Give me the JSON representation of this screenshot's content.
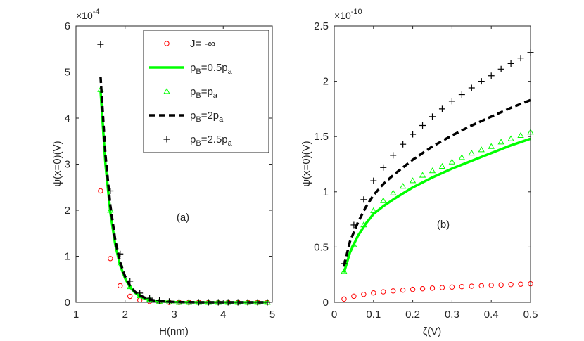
{
  "colors": {
    "axis": "#262626",
    "red": "#ff0000",
    "green": "#00ff00",
    "black": "#000000",
    "plus": "#000000"
  },
  "chart_data": [
    {
      "type": "line",
      "panel_label": "(a)",
      "xlabel": "H(nm)",
      "ylabel": "ψ(x=0)(V)",
      "exponent": {
        "base": "×10",
        "power": "-4"
      },
      "xlim": [
        1,
        5
      ],
      "ylim": [
        0,
        6
      ],
      "xticks": [
        "1",
        "2",
        "3",
        "4",
        "5"
      ],
      "yticks": [
        "0",
        "1",
        "2",
        "3",
        "4",
        "5",
        "6"
      ],
      "legend": {
        "placement": "top-right",
        "entries": [
          {
            "pre": "J= -∞",
            "sub": "",
            "post": "",
            "marker": "circle",
            "color": "#ff0000"
          },
          {
            "pre": "p",
            "sub": "B",
            "post": "=0.5p",
            "sub2": "a",
            "marker": "line",
            "color": "#00ff00"
          },
          {
            "pre": "p",
            "sub": "B",
            "post": "=p",
            "sub2": "a",
            "marker": "triangle",
            "color": "#00ff00"
          },
          {
            "pre": "p",
            "sub": "B",
            "post": "=2p",
            "sub2": "a",
            "marker": "dash",
            "color": "#000000"
          },
          {
            "pre": "p",
            "sub": "B",
            "post": "=2.5p",
            "sub2": "a",
            "marker": "plus",
            "color": "#000000"
          }
        ]
      },
      "series": [
        {
          "name": "J= -∞",
          "style": "circle",
          "color": "#ff0000",
          "x": [
            1.5,
            1.7,
            1.9,
            2.1,
            2.3,
            2.5,
            2.7,
            2.9,
            3.1,
            3.3,
            3.5,
            3.7,
            3.9,
            4.1,
            4.3,
            4.5,
            4.7,
            4.9
          ],
          "y": [
            2.42,
            0.95,
            0.36,
            0.13,
            0.05,
            0.02,
            0.01,
            0.0,
            0.0,
            0.0,
            0.0,
            0.0,
            0.0,
            0.0,
            0.0,
            0.0,
            0.0,
            0.0
          ]
        },
        {
          "name": "pB=0.5pa",
          "style": "line",
          "color": "#00ff00",
          "x": [
            1.5,
            1.6,
            1.7,
            1.8,
            1.9,
            2.0,
            2.1,
            2.2,
            2.3,
            2.4,
            2.5,
            2.6,
            2.8,
            3.0,
            3.5,
            4.0,
            4.5,
            4.9
          ],
          "y": [
            4.6,
            3.0,
            1.95,
            1.25,
            0.8,
            0.52,
            0.33,
            0.21,
            0.13,
            0.08,
            0.05,
            0.03,
            0.015,
            0.005,
            0.0,
            0.0,
            0.0,
            0.0
          ]
        },
        {
          "name": "pB=pa",
          "style": "triangle",
          "color": "#00ff00",
          "x": [
            1.5,
            1.7,
            1.9,
            2.1,
            2.3,
            2.5,
            2.7,
            2.9,
            3.1,
            3.3,
            3.5,
            3.7,
            3.9,
            4.1,
            4.3,
            4.5,
            4.7,
            4.9
          ],
          "y": [
            4.62,
            2.0,
            0.83,
            0.34,
            0.14,
            0.06,
            0.025,
            0.01,
            0.0,
            0.0,
            0.0,
            0.0,
            0.0,
            0.0,
            0.0,
            0.0,
            0.0,
            0.0
          ]
        },
        {
          "name": "pB=2pa",
          "style": "dash",
          "color": "#000000",
          "x": [
            1.5,
            1.6,
            1.7,
            1.8,
            1.9,
            2.0,
            2.1,
            2.2,
            2.3,
            2.4,
            2.5,
            2.6,
            2.8,
            3.0,
            3.5,
            4.0,
            4.5,
            4.9
          ],
          "y": [
            4.9,
            3.2,
            2.1,
            1.35,
            0.87,
            0.56,
            0.36,
            0.23,
            0.15,
            0.1,
            0.06,
            0.04,
            0.018,
            0.008,
            0.0,
            0.0,
            0.0,
            0.0
          ]
        },
        {
          "name": "pB=2.5pa",
          "style": "plus",
          "color": "#000000",
          "x": [
            1.5,
            1.7,
            1.9,
            2.1,
            2.3,
            2.5,
            2.7,
            2.9,
            3.1,
            3.3,
            3.5,
            3.7,
            3.9,
            4.1,
            4.3,
            4.5,
            4.7,
            4.9
          ],
          "y": [
            5.6,
            2.42,
            1.05,
            0.46,
            0.2,
            0.09,
            0.04,
            0.02,
            0.01,
            0.0,
            0.0,
            0.0,
            0.0,
            0.0,
            0.0,
            0.0,
            0.0,
            0.0
          ]
        }
      ]
    },
    {
      "type": "line",
      "panel_label": "(b)",
      "xlabel": "ζ(V)",
      "ylabel": "ψ(x=0)(V)",
      "exponent": {
        "base": "×10",
        "power": "-10"
      },
      "xlim": [
        0,
        0.5
      ],
      "ylim": [
        0,
        2.5
      ],
      "xticks": [
        "0",
        "0.1",
        "0.2",
        "0.3",
        "0.4",
        "0.5"
      ],
      "yticks": [
        "0",
        "0.5",
        "1",
        "1.5",
        "2",
        "2.5"
      ],
      "series": [
        {
          "name": "J= -∞",
          "style": "circle",
          "color": "#ff0000",
          "x": [
            0.025,
            0.05,
            0.075,
            0.1,
            0.125,
            0.15,
            0.175,
            0.2,
            0.225,
            0.25,
            0.275,
            0.3,
            0.325,
            0.35,
            0.375,
            0.4,
            0.425,
            0.45,
            0.475,
            0.5
          ],
          "y": [
            0.03,
            0.055,
            0.072,
            0.085,
            0.095,
            0.103,
            0.11,
            0.117,
            0.123,
            0.128,
            0.133,
            0.138,
            0.142,
            0.146,
            0.15,
            0.154,
            0.157,
            0.161,
            0.164,
            0.168
          ]
        },
        {
          "name": "pB=0.5pa",
          "style": "line",
          "color": "#00ff00",
          "x": [
            0.025,
            0.04,
            0.06,
            0.08,
            0.1,
            0.125,
            0.15,
            0.2,
            0.25,
            0.3,
            0.35,
            0.4,
            0.45,
            0.5
          ],
          "y": [
            0.27,
            0.45,
            0.6,
            0.71,
            0.8,
            0.87,
            0.93,
            1.04,
            1.13,
            1.21,
            1.28,
            1.35,
            1.42,
            1.48
          ]
        },
        {
          "name": "pB=pa",
          "style": "triangle",
          "color": "#00ff00",
          "x": [
            0.025,
            0.05,
            0.075,
            0.1,
            0.125,
            0.15,
            0.175,
            0.2,
            0.225,
            0.25,
            0.275,
            0.3,
            0.325,
            0.35,
            0.375,
            0.4,
            0.425,
            0.45,
            0.475,
            0.5
          ],
          "y": [
            0.28,
            0.52,
            0.7,
            0.83,
            0.92,
            0.99,
            1.05,
            1.1,
            1.15,
            1.19,
            1.23,
            1.27,
            1.31,
            1.35,
            1.38,
            1.41,
            1.45,
            1.48,
            1.51,
            1.54
          ]
        },
        {
          "name": "pB=2pa",
          "style": "dash",
          "color": "#000000",
          "x": [
            0.025,
            0.04,
            0.06,
            0.08,
            0.1,
            0.125,
            0.15,
            0.2,
            0.25,
            0.3,
            0.35,
            0.4,
            0.45,
            0.5
          ],
          "y": [
            0.33,
            0.55,
            0.72,
            0.86,
            0.97,
            1.07,
            1.15,
            1.29,
            1.41,
            1.51,
            1.6,
            1.68,
            1.76,
            1.83
          ]
        },
        {
          "name": "pB=2.5pa",
          "style": "plus",
          "color": "#000000",
          "x": [
            0.025,
            0.05,
            0.075,
            0.1,
            0.125,
            0.15,
            0.175,
            0.2,
            0.225,
            0.25,
            0.275,
            0.3,
            0.325,
            0.35,
            0.375,
            0.4,
            0.425,
            0.45,
            0.475,
            0.5
          ],
          "y": [
            0.35,
            0.7,
            0.93,
            1.1,
            1.22,
            1.33,
            1.43,
            1.52,
            1.6,
            1.68,
            1.75,
            1.82,
            1.88,
            1.94,
            2.0,
            2.05,
            2.11,
            2.16,
            2.21,
            2.26
          ]
        }
      ]
    }
  ]
}
